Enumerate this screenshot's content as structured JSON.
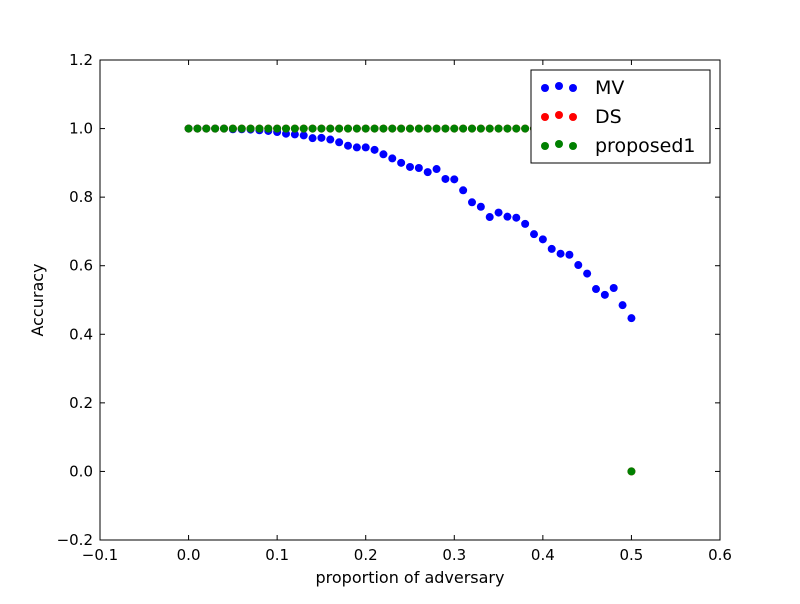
{
  "chart_data": {
    "type": "scatter",
    "title": "",
    "xlabel": "proportion of adversary",
    "ylabel": "Accuracy",
    "xlim": [
      -0.1,
      0.6
    ],
    "ylim": [
      -0.2,
      1.2
    ],
    "xticks": [
      -0.1,
      0.0,
      0.1,
      0.2,
      0.3,
      0.4,
      0.5,
      0.6
    ],
    "yticks": [
      -0.2,
      0.0,
      0.2,
      0.4,
      0.6,
      0.8,
      1.0,
      1.2
    ],
    "xtick_labels": [
      "−0.1",
      "0.0",
      "0.1",
      "0.2",
      "0.3",
      "0.4",
      "0.5",
      "0.6"
    ],
    "ytick_labels": [
      "−0.2",
      "0.0",
      "0.2",
      "0.4",
      "0.6",
      "0.8",
      "1.0",
      "1.2"
    ],
    "grid": false,
    "legend_placement": "top-right",
    "series": [
      {
        "name": "MV",
        "color": "#0000ff",
        "x": [
          0.0,
          0.01,
          0.02,
          0.03,
          0.04,
          0.05,
          0.06,
          0.07,
          0.08,
          0.09,
          0.1,
          0.11,
          0.12,
          0.13,
          0.14,
          0.15,
          0.16,
          0.17,
          0.18,
          0.19,
          0.2,
          0.21,
          0.22,
          0.23,
          0.24,
          0.25,
          0.26,
          0.27,
          0.28,
          0.29,
          0.3,
          0.31,
          0.32,
          0.33,
          0.34,
          0.35,
          0.36,
          0.37,
          0.38,
          0.39,
          0.4,
          0.41,
          0.42,
          0.43,
          0.44,
          0.45,
          0.46,
          0.47,
          0.48,
          0.49,
          0.5
        ],
        "y": [
          1.0,
          1.0,
          1.0,
          1.0,
          1.0,
          0.998,
          0.998,
          0.997,
          0.995,
          0.993,
          0.99,
          0.985,
          0.983,
          0.98,
          0.972,
          0.973,
          0.968,
          0.96,
          0.95,
          0.945,
          0.945,
          0.938,
          0.925,
          0.913,
          0.9,
          0.888,
          0.885,
          0.873,
          0.882,
          0.853,
          0.852,
          0.82,
          0.785,
          0.772,
          0.742,
          0.755,
          0.743,
          0.74,
          0.722,
          0.692,
          0.677,
          0.649,
          0.635,
          0.632,
          0.602,
          0.577,
          0.532,
          0.515,
          0.535,
          0.485,
          0.447
        ]
      },
      {
        "name": "DS",
        "color": "#ff0000",
        "x": [
          0.0,
          0.01,
          0.02,
          0.03,
          0.04,
          0.05,
          0.06,
          0.07,
          0.08,
          0.09,
          0.1,
          0.11,
          0.12,
          0.13,
          0.14,
          0.15,
          0.16,
          0.17,
          0.18,
          0.19,
          0.2,
          0.21,
          0.22,
          0.23,
          0.24,
          0.25,
          0.26,
          0.27,
          0.28,
          0.29,
          0.3,
          0.31,
          0.32,
          0.33,
          0.34,
          0.35,
          0.36,
          0.37,
          0.38,
          0.39,
          0.4,
          0.41,
          0.42,
          0.43,
          0.44,
          0.45,
          0.46,
          0.47,
          0.48,
          0.49,
          0.5
        ],
        "y": [
          1.0,
          1.0,
          1.0,
          1.0,
          1.0,
          1.0,
          1.0,
          1.0,
          1.0,
          1.0,
          1.0,
          1.0,
          1.0,
          1.0,
          1.0,
          1.0,
          1.0,
          1.0,
          1.0,
          1.0,
          1.0,
          1.0,
          1.0,
          1.0,
          1.0,
          1.0,
          1.0,
          1.0,
          1.0,
          1.0,
          1.0,
          1.0,
          1.0,
          1.0,
          1.0,
          1.0,
          1.0,
          1.0,
          1.0,
          1.0,
          1.0,
          1.0,
          1.0,
          1.0,
          1.0,
          1.0,
          1.0,
          1.0,
          1.0,
          1.0,
          0.0
        ]
      },
      {
        "name": "proposed1",
        "color": "#008000",
        "x": [
          0.0,
          0.01,
          0.02,
          0.03,
          0.04,
          0.05,
          0.06,
          0.07,
          0.08,
          0.09,
          0.1,
          0.11,
          0.12,
          0.13,
          0.14,
          0.15,
          0.16,
          0.17,
          0.18,
          0.19,
          0.2,
          0.21,
          0.22,
          0.23,
          0.24,
          0.25,
          0.26,
          0.27,
          0.28,
          0.29,
          0.3,
          0.31,
          0.32,
          0.33,
          0.34,
          0.35,
          0.36,
          0.37,
          0.38,
          0.39,
          0.4,
          0.41,
          0.42,
          0.43,
          0.44,
          0.45,
          0.46,
          0.47,
          0.48,
          0.49,
          0.5
        ],
        "y": [
          1.0,
          1.0,
          1.0,
          1.0,
          1.0,
          1.0,
          1.0,
          1.0,
          1.0,
          1.0,
          1.0,
          1.0,
          1.0,
          1.0,
          1.0,
          1.0,
          1.0,
          1.0,
          1.0,
          1.0,
          1.0,
          1.0,
          1.0,
          1.0,
          1.0,
          1.0,
          1.0,
          1.0,
          1.0,
          1.0,
          1.0,
          1.0,
          1.0,
          1.0,
          1.0,
          1.0,
          1.0,
          1.0,
          1.0,
          1.0,
          1.0,
          1.0,
          1.0,
          1.0,
          1.0,
          1.0,
          1.0,
          1.0,
          1.0,
          1.0,
          0.0
        ]
      }
    ]
  }
}
